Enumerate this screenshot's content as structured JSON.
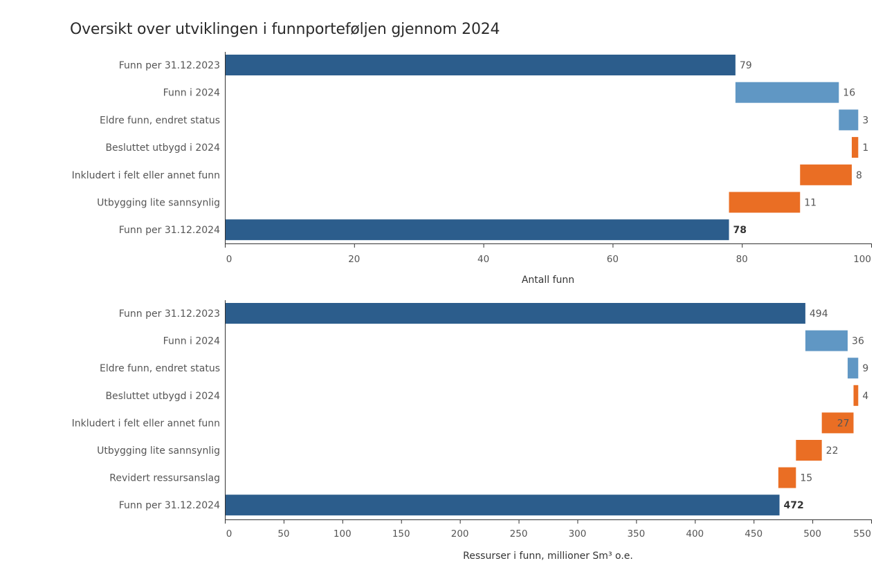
{
  "title": "Oversikt over utviklingen i funnporteføljen gjennom 2024",
  "colors": {
    "total": "#2c5d8c",
    "increase": "#6097c4",
    "decrease": "#ea6e24",
    "axis": "#333333",
    "text": "#555555"
  },
  "chart_data": [
    {
      "type": "bar",
      "subtype": "waterfall",
      "orientation": "horizontal",
      "categories": [
        "Funn per 31.12.2023",
        "Funn i 2024",
        "Eldre funn, endret status",
        "Besluttet utbygd i 2024",
        "Inkludert i felt eller annet funn",
        "Utbygging lite sannsynlig",
        "Funn per 31.12.2024"
      ],
      "values": [
        79,
        16,
        3,
        1,
        8,
        11,
        78
      ],
      "kinds": [
        "total",
        "increase",
        "increase",
        "decrease",
        "decrease",
        "decrease",
        "total"
      ],
      "data_labels": [
        "79",
        "16",
        "3",
        "1",
        "8",
        "11",
        "78"
      ],
      "xlabel": "Antall funn",
      "xlim": [
        0,
        100
      ],
      "ticks": [
        0,
        20,
        40,
        60,
        80,
        100
      ],
      "grid": false,
      "legend": "none"
    },
    {
      "type": "bar",
      "subtype": "waterfall",
      "orientation": "horizontal",
      "categories": [
        "Funn per 31.12.2023",
        "Funn i 2024",
        "Eldre funn, endret status",
        "Besluttet utbygd i 2024",
        "Inkludert i felt eller annet funn",
        "Utbygging lite sannsynlig",
        "Revidert ressursanslag",
        "Funn per 31.12.2024"
      ],
      "values": [
        494,
        36,
        9,
        4,
        27,
        22,
        15,
        472
      ],
      "kinds": [
        "total",
        "increase",
        "increase",
        "decrease",
        "decrease",
        "decrease",
        "decrease",
        "total"
      ],
      "data_labels": [
        "494",
        "36",
        "9",
        "4",
        "27",
        "22",
        "15",
        "472"
      ],
      "xlabel": "Ressurser i funn, millioner Sm³ o.e.",
      "xlim": [
        0,
        550
      ],
      "ticks": [
        0,
        50,
        100,
        150,
        200,
        250,
        300,
        350,
        400,
        450,
        500,
        550
      ],
      "grid": false,
      "legend": "none"
    }
  ]
}
